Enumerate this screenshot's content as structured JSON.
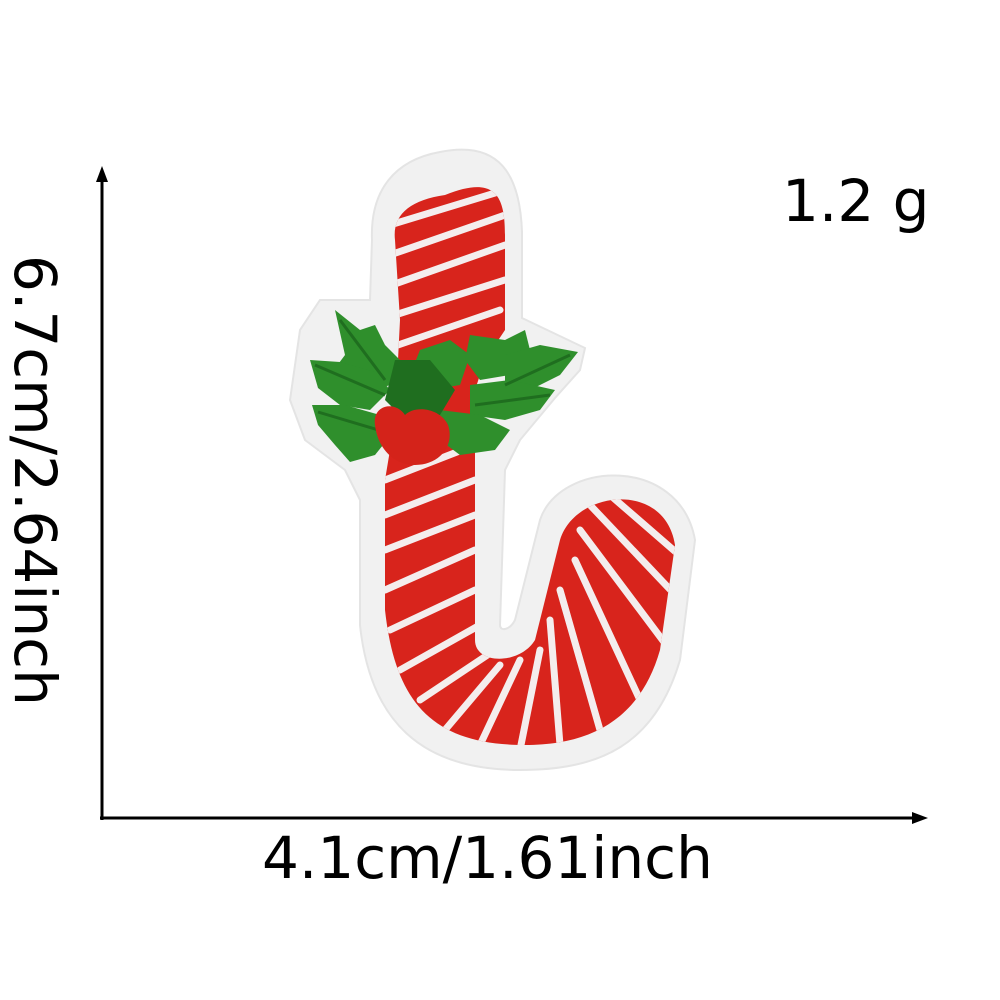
{
  "measurements": {
    "weight": "1.2 g",
    "height": "6.7cm/2.64inch",
    "width": "4.1cm/1.61inch"
  },
  "colors": {
    "background": "#ffffff",
    "felt_border": "#f1f1f1",
    "candy_red": "#d8241c",
    "candy_stripe": "#f4eded",
    "leaf_green": "#2f8f2c",
    "leaf_dark": "#1f6e1f",
    "berry_red": "#d4231a",
    "axis": "#000000"
  },
  "product": {
    "subject": "candy-cane-embroidered-patch"
  }
}
